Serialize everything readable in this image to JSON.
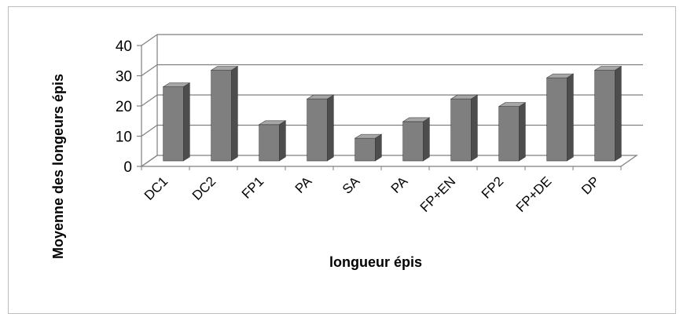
{
  "chart_data": {
    "type": "bar",
    "categories": [
      "DC1",
      "DC2",
      "FP1",
      "PA",
      "SA",
      "PA",
      "FP+EN",
      "FP2",
      "FP+DE",
      "DP"
    ],
    "values": [
      24.5,
      30,
      12,
      20.5,
      7.5,
      13,
      20.5,
      18,
      27.5,
      30
    ],
    "xlabel": "longueur épis",
    "ylabel": "Moyenne des longeurs épis",
    "ylim": [
      0,
      40
    ],
    "yticks": [
      0,
      10,
      20,
      30,
      40
    ],
    "grid": true,
    "legend": "none",
    "colors": {
      "bar_front": "#7f7f7f",
      "bar_side": "#4d4d4d",
      "bar_top": "#a6a6a6",
      "grid": "#7f7f7f"
    }
  }
}
